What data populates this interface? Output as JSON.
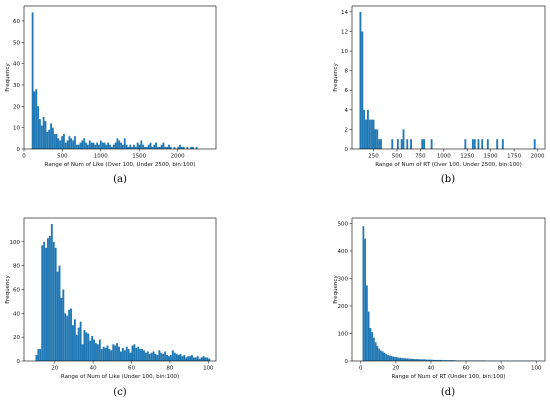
{
  "chart_data": [
    {
      "id": "a",
      "type": "bar",
      "panel_label": "(a)",
      "xlabel": "Range of Num of Like (Over 100, Under 2500, bin:100)",
      "ylabel": "Frequency",
      "xlim": [
        0,
        2500
      ],
      "ylim": [
        0,
        67
      ],
      "xticks": [
        0,
        500,
        1000,
        1500,
        2000
      ],
      "yticks": [
        0,
        10,
        20,
        30,
        40,
        50,
        60
      ],
      "x": [
        100,
        124,
        148,
        172,
        196,
        220,
        244,
        268,
        292,
        316,
        340,
        364,
        388,
        412,
        436,
        460,
        484,
        508,
        532,
        556,
        580,
        604,
        628,
        652,
        676,
        700,
        724,
        748,
        772,
        796,
        820,
        844,
        868,
        892,
        916,
        940,
        964,
        988,
        1012,
        1036,
        1060,
        1084,
        1108,
        1132,
        1156,
        1180,
        1204,
        1228,
        1252,
        1276,
        1300,
        1324,
        1348,
        1372,
        1396,
        1420,
        1444,
        1468,
        1492,
        1516,
        1540,
        1564,
        1588,
        1612,
        1636,
        1660,
        1684,
        1708,
        1732,
        1756,
        1780,
        1804,
        1828,
        1852,
        1876,
        1900,
        1924,
        1948,
        1972,
        1996,
        2020,
        2044,
        2068,
        2092,
        2116,
        2140,
        2164,
        2188,
        2212,
        2236
      ],
      "values": [
        64,
        27,
        28,
        20,
        14,
        11,
        15,
        13,
        8,
        9,
        12,
        10,
        7,
        7,
        5,
        4,
        6,
        7,
        3,
        4,
        6,
        5,
        4,
        6,
        2,
        2,
        3,
        4,
        5,
        3,
        2,
        4,
        3,
        3,
        2,
        3,
        2,
        4,
        3,
        3,
        2,
        3,
        2,
        1,
        2,
        3,
        5,
        4,
        3,
        2,
        5,
        2,
        1,
        2,
        1,
        2,
        1,
        3,
        2,
        4,
        2,
        1,
        1,
        2,
        3,
        1,
        2,
        3,
        1,
        1,
        2,
        3,
        1,
        1,
        2,
        1,
        0,
        1,
        0,
        1,
        2,
        1,
        1,
        0,
        1,
        0,
        1,
        1,
        0,
        1
      ]
    },
    {
      "id": "b",
      "type": "bar",
      "panel_label": "(b)",
      "xlabel": "Range of Num of RT (Over 100, Under 2500, bin:100)",
      "ylabel": "Frequency",
      "xlim": [
        20,
        2080
      ],
      "ylim": [
        0,
        14.6
      ],
      "xticks": [
        250,
        500,
        750,
        1000,
        1250,
        1500,
        1750,
        2000
      ],
      "yticks": [
        0,
        2,
        4,
        6,
        8,
        10,
        12,
        14
      ],
      "x": [
        100,
        120,
        140,
        160,
        180,
        200,
        220,
        240,
        260,
        280,
        300,
        320,
        440,
        500,
        540,
        560,
        600,
        640,
        760,
        780,
        860,
        1220,
        1300,
        1320,
        1360,
        1400,
        1460,
        1560,
        1620,
        1960
      ],
      "values": [
        14,
        12,
        4,
        3,
        4,
        3,
        3,
        3,
        2,
        2,
        1,
        1,
        1,
        1,
        1,
        2,
        1,
        1,
        1,
        1,
        1,
        1,
        1,
        1,
        1,
        1,
        1,
        1,
        1,
        1
      ]
    },
    {
      "id": "c",
      "type": "bar",
      "panel_label": "(c)",
      "xlabel": "Range of Num of Like (Under 100, bin:100)",
      "ylabel": "Frequency",
      "xlim": [
        4,
        104
      ],
      "ylim": [
        0,
        120
      ],
      "xticks": [
        20,
        40,
        60,
        80,
        100
      ],
      "yticks": [
        0,
        20,
        40,
        60,
        80,
        100
      ],
      "x": [
        10,
        11,
        12,
        13,
        14,
        15,
        16,
        17,
        18,
        19,
        20,
        21,
        22,
        23,
        24,
        25,
        26,
        27,
        28,
        29,
        30,
        31,
        32,
        33,
        34,
        35,
        36,
        37,
        38,
        39,
        40,
        41,
        42,
        43,
        44,
        45,
        46,
        47,
        48,
        49,
        50,
        51,
        52,
        53,
        54,
        55,
        56,
        57,
        58,
        59,
        60,
        61,
        62,
        63,
        64,
        65,
        66,
        67,
        68,
        69,
        70,
        71,
        72,
        73,
        74,
        75,
        76,
        77,
        78,
        79,
        80,
        81,
        82,
        83,
        84,
        85,
        86,
        87,
        88,
        89,
        90,
        91,
        92,
        93,
        94,
        95,
        96,
        97,
        98,
        99,
        100
      ],
      "values": [
        5,
        10,
        10,
        97,
        100,
        95,
        103,
        105,
        115,
        100,
        95,
        75,
        80,
        53,
        60,
        40,
        38,
        43,
        44,
        30,
        35,
        22,
        28,
        33,
        14,
        26,
        24,
        23,
        17,
        21,
        18,
        15,
        14,
        18,
        10,
        12,
        11,
        13,
        10,
        9,
        14,
        13,
        15,
        12,
        8,
        11,
        9,
        12,
        10,
        7,
        13,
        14,
        11,
        12,
        10,
        10,
        9,
        7,
        8,
        6,
        7,
        8,
        6,
        5,
        9,
        7,
        6,
        8,
        5,
        4,
        5,
        9,
        7,
        6,
        5,
        6,
        4,
        5,
        3,
        4,
        4,
        5,
        3,
        3,
        4,
        2,
        3,
        4,
        3,
        3,
        2
      ]
    },
    {
      "id": "d",
      "type": "bar",
      "panel_label": "(d)",
      "xlabel": "Range of Num of RT (Under 100, bin:100)",
      "ylabel": "Frequency",
      "xlim": [
        -5,
        105
      ],
      "ylim": [
        0,
        520
      ],
      "xticks": [
        0,
        20,
        40,
        60,
        80,
        100
      ],
      "yticks": [
        0,
        100,
        200,
        300,
        400,
        500
      ],
      "x": [
        1,
        2,
        3,
        4,
        5,
        6,
        7,
        8,
        9,
        10,
        11,
        12,
        13,
        14,
        15,
        16,
        17,
        18,
        19,
        20,
        21,
        22,
        23,
        24,
        25,
        26,
        27,
        28,
        29,
        30,
        31,
        32,
        33,
        34,
        35,
        36,
        37,
        38,
        39,
        40,
        41,
        42,
        43,
        44,
        45,
        46,
        47,
        48,
        49,
        50,
        51,
        52,
        53,
        54,
        55,
        56,
        57,
        58,
        59,
        60,
        61,
        62,
        63,
        64,
        65,
        66,
        67,
        68,
        69,
        70,
        71,
        72,
        73,
        74,
        75,
        76,
        77,
        78,
        79,
        80,
        81,
        82,
        83,
        84,
        85,
        86,
        87,
        88,
        89,
        90,
        91,
        92,
        93,
        94,
        95,
        96,
        97,
        98,
        99
      ],
      "values": [
        490,
        445,
        275,
        180,
        120,
        105,
        85,
        68,
        55,
        45,
        38,
        35,
        30,
        25,
        22,
        20,
        18,
        16,
        15,
        14,
        12,
        12,
        11,
        10,
        10,
        9,
        9,
        8,
        8,
        7,
        7,
        7,
        6,
        6,
        6,
        6,
        5,
        5,
        5,
        5,
        4,
        4,
        4,
        4,
        4,
        3,
        3,
        3,
        3,
        3,
        3,
        3,
        3,
        2,
        2,
        2,
        2,
        2,
        2,
        2,
        2,
        2,
        2,
        2,
        2,
        2,
        2,
        2,
        2,
        2,
        1,
        1,
        1,
        1,
        1,
        1,
        1,
        1,
        1,
        1,
        1,
        1,
        1,
        1,
        1,
        1,
        1,
        1,
        1,
        1,
        1,
        1,
        1,
        1,
        1,
        1,
        1,
        1,
        1
      ]
    }
  ]
}
